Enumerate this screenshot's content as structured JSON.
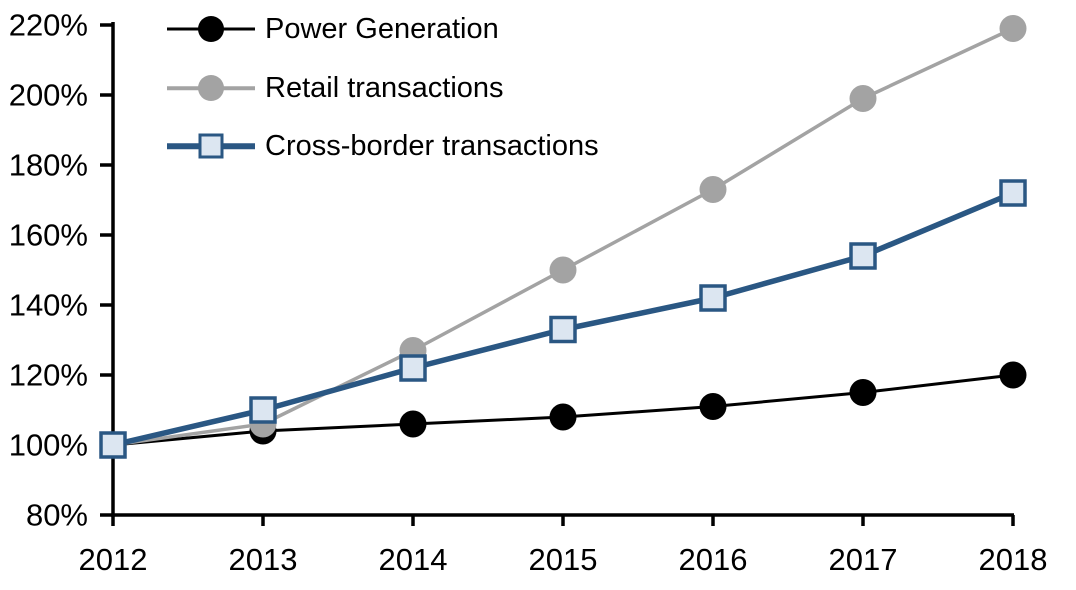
{
  "chart_data": {
    "type": "line",
    "title": "",
    "xlabel": "",
    "ylabel": "",
    "categories": [
      "2012",
      "2013",
      "2014",
      "2015",
      "2016",
      "2017",
      "2018"
    ],
    "series": [
      {
        "name": "Power Generation",
        "values": [
          100,
          104,
          106,
          108,
          111,
          115,
          120
        ],
        "color": "#000000",
        "marker": "circle",
        "marker_fill": "#000000",
        "line_width": 3
      },
      {
        "name": "Retail transactions",
        "values": [
          100,
          106,
          127,
          150,
          173,
          199,
          219
        ],
        "color": "#a3a3a3",
        "marker": "circle",
        "marker_fill": "#a3a3a3",
        "line_width": 3.5
      },
      {
        "name": "Cross-border transactions",
        "values": [
          100,
          110,
          122,
          133,
          142,
          154,
          172
        ],
        "color": "#2a5783",
        "marker": "square",
        "marker_fill": "#dce6f1",
        "line_width": 5.5
      }
    ],
    "y_ticks": [
      "80%",
      "100%",
      "120%",
      "140%",
      "160%",
      "180%",
      "200%",
      "220%"
    ],
    "y_tick_values": [
      80,
      100,
      120,
      140,
      160,
      180,
      200,
      220
    ],
    "ylim": [
      80,
      220
    ],
    "value_format": "percent",
    "grid": false,
    "legend_position": "top-left-inside",
    "axis_color": "#000000",
    "background_color": "#ffffff"
  }
}
